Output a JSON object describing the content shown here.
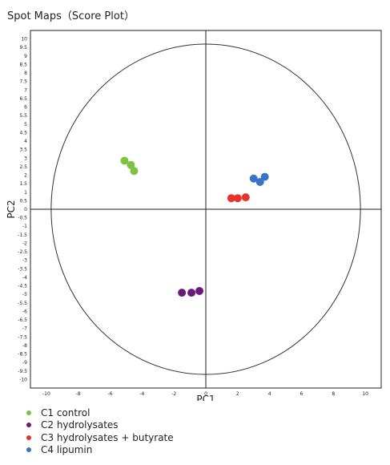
{
  "chart_data": {
    "type": "scatter",
    "title": "Spot Maps（Score Plot）",
    "xlabel": "PC1",
    "ylabel": "PC2",
    "xlim": [
      -11,
      11
    ],
    "ylim": [
      -10.5,
      10.5
    ],
    "x_ticks": [
      -10,
      -8,
      -6,
      -4,
      -2,
      0,
      2,
      4,
      6,
      8,
      10
    ],
    "y_ticks": [
      10,
      9.5,
      9,
      8.5,
      8,
      7.5,
      7,
      6.5,
      6,
      5.5,
      5,
      4.5,
      4,
      3.5,
      3,
      2.5,
      2,
      1.5,
      1,
      0.5,
      0,
      -0.5,
      -1,
      -1.5,
      -2,
      -2.5,
      -3,
      -3.5,
      -4,
      -4.5,
      -5,
      -5.5,
      -6,
      -6.5,
      -7,
      -7.5,
      -8,
      -8.5,
      -9,
      -9.5,
      -10
    ],
    "grid": false,
    "legend_position": "bottom-left",
    "circle_radius": 9.7,
    "series": [
      {
        "name": "C1 control",
        "color": "#7dc242",
        "points": [
          {
            "x": -5.1,
            "y": 2.85
          },
          {
            "x": -4.7,
            "y": 2.6
          },
          {
            "x": -4.5,
            "y": 2.25
          }
        ]
      },
      {
        "name": "C2 hydrolysates",
        "color": "#6a1b7a",
        "points": [
          {
            "x": -1.5,
            "y": -4.9
          },
          {
            "x": -0.9,
            "y": -4.9
          },
          {
            "x": -0.4,
            "y": -4.8
          }
        ]
      },
      {
        "name": "C3 hydrolysates + butyrate",
        "color": "#e8332a",
        "points": [
          {
            "x": 1.6,
            "y": 0.65
          },
          {
            "x": 2.0,
            "y": 0.65
          },
          {
            "x": 2.5,
            "y": 0.7
          }
        ]
      },
      {
        "name": "C4 lipumin",
        "color": "#3a74c4",
        "points": [
          {
            "x": 3.0,
            "y": 1.8
          },
          {
            "x": 3.4,
            "y": 1.6
          },
          {
            "x": 3.7,
            "y": 1.9
          }
        ]
      }
    ]
  }
}
